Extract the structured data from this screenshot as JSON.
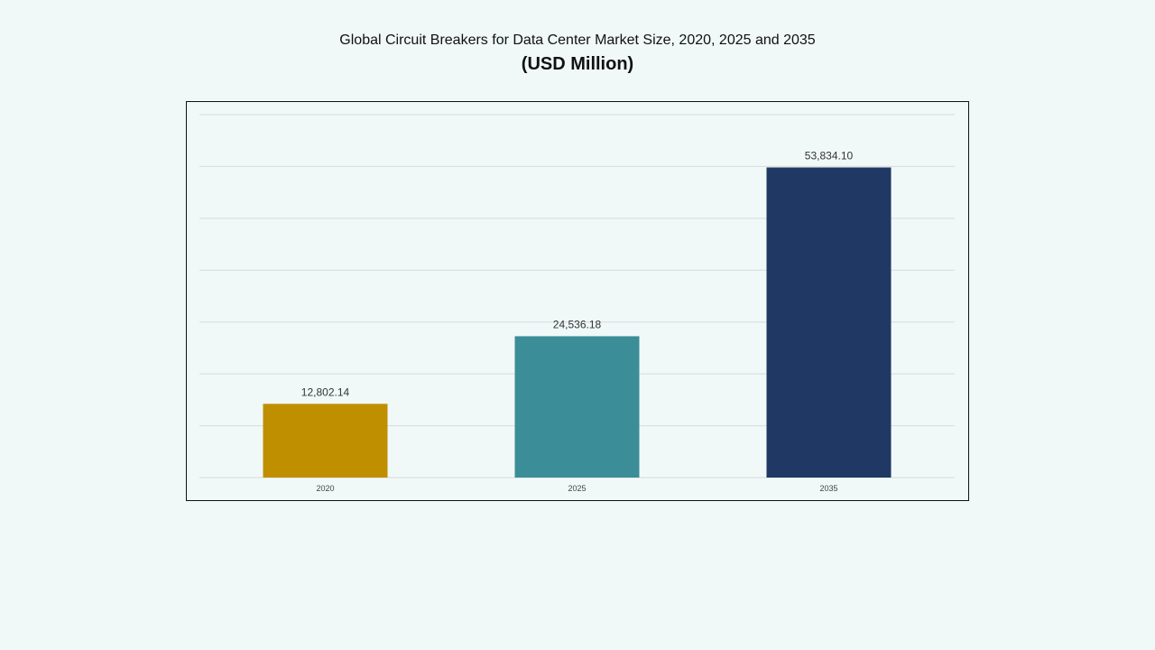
{
  "chart_data": {
    "type": "bar",
    "title": "Global Circuit Breakers for Data Center Market Size, 2020, 2025 and 2035",
    "subtitle": "(USD Million)",
    "categories": [
      "2020",
      "2025",
      "2035"
    ],
    "values": [
      12802.14,
      24536.18,
      53834.1
    ],
    "value_labels": [
      "12,802.14",
      "24,536.18",
      "53,834.10"
    ],
    "colors": [
      "#bf8f00",
      "#3b8e98",
      "#203864"
    ],
    "ylim": [
      0,
      63000
    ],
    "ytick_step": 9000,
    "grid": true,
    "y_axis_labels_shown": false,
    "legend": "none"
  }
}
